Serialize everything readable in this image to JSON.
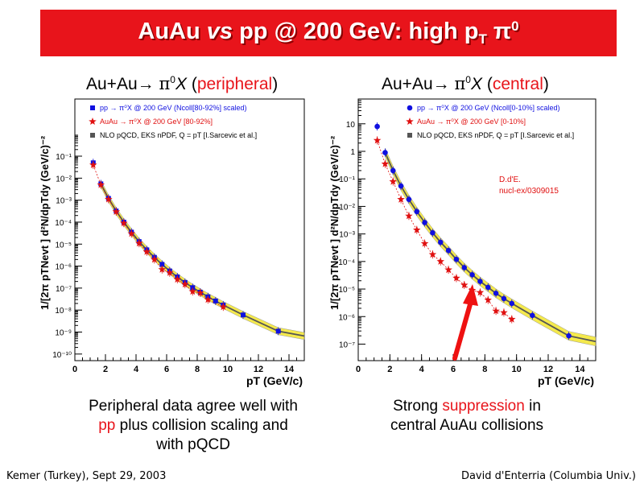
{
  "title": {
    "main": "AuAu ",
    "vs": "vs",
    "rest": " pp @ 200 GeV: high p",
    "sub": "T",
    "sp": " π",
    "sup": "0"
  },
  "left_heading": {
    "prefix": "Au+Au→ ",
    "pi": "π",
    "sup": "0",
    "x": "X",
    "open": " (",
    "tag": "peripheral",
    "close": ")"
  },
  "right_heading": {
    "prefix": "Au+Au→ ",
    "pi": "π",
    "sup": "0",
    "x": "X",
    "open": " (",
    "tag": "central",
    "close": ")"
  },
  "ylabel": "1/[2π pTNevt ] d²N/dpTdy (GeV/c)⁻²",
  "left_caption": {
    "l1": "Peripheral data agree well with",
    "l2a": "pp",
    "l2b": " plus collision scaling and",
    "l3": "with pQCD"
  },
  "right_caption": {
    "l1a": "Strong ",
    "l1b": "suppression",
    "l1c": " in",
    "l2": "central AuAu collisions"
  },
  "footer": {
    "left": "Kemer (Turkey), Sept 29, 2003",
    "right": "David d'Enterria (Columbia Univ.)"
  },
  "annotation": {
    "l1": "D.d'E.",
    "l2": "nucl-ex/0309015"
  },
  "colors": {
    "banner": "#e8141b",
    "pp": "#1010e0",
    "auau": "#e01010",
    "nlo_band": "#f0e000",
    "arrow": "#ee1111"
  },
  "chart_data": [
    {
      "type": "scatter",
      "xlabel": "pT (GeV/c)",
      "ylabel": "1/[2π pTNevt ] d²N/dpTdy (GeV/c)⁻²",
      "xlim": [
        0,
        15
      ],
      "ylim_log10": [
        -10.3,
        1.6
      ],
      "xticks": [
        0,
        2,
        4,
        6,
        8,
        10,
        12,
        14
      ],
      "yticks_log10": [
        -10,
        -9,
        -8,
        -7,
        -6,
        -5,
        -4,
        -3,
        -2,
        -1
      ],
      "ytick_labels": [
        "10⁻¹⁰",
        "10⁻⁹",
        "10⁻⁸",
        "10⁻⁷",
        "10⁻⁶",
        "10⁻⁵",
        "10⁻⁴",
        "10⁻³",
        "10⁻²",
        "10⁻¹"
      ],
      "legend": [
        "pp → π⁰X @ 200 GeV (Ncoll[80-92%] scaled)",
        "AuAu → π⁰X @ 200 GeV [80-92%]",
        "NLO pQCD, EKS nPDF, Q = pT [I.Sarcevic et al.]"
      ],
      "series": [
        {
          "name": "pp → π⁰X @ 200 GeV (Ncoll[80-92%] scaled)",
          "marker": "square",
          "color": "#1010e0",
          "x": [
            1.2,
            1.7,
            2.2,
            2.7,
            3.2,
            3.7,
            4.2,
            4.7,
            5.2,
            5.7,
            6.2,
            6.7,
            7.2,
            7.7,
            8.2,
            8.7,
            9.2,
            9.7,
            11.0,
            13.3
          ],
          "y": [
            0.05,
            0.0055,
            0.0012,
            0.00032,
            0.0001,
            3.5e-05,
            1.3e-05,
            5.5e-06,
            2.5e-06,
            1.2e-06,
            6e-07,
            3.2e-07,
            1.8e-07,
            1.05e-07,
            6.5e-08,
            4e-08,
            2.6e-08,
            1.7e-08,
            6e-09,
            1.1e-09
          ]
        },
        {
          "name": "AuAu → π⁰X @ 200 GeV [80-92%]",
          "marker": "star",
          "color": "#e01010",
          "x": [
            1.2,
            1.7,
            2.2,
            2.7,
            3.2,
            3.7,
            4.2,
            4.7,
            5.2,
            5.7,
            6.2,
            6.7,
            7.2,
            7.7,
            8.2,
            8.7,
            9.7
          ],
          "y": [
            0.04,
            0.005,
            0.0011,
            0.0003,
            9e-05,
            3e-05,
            1.1e-05,
            4.5e-06,
            2e-06,
            7e-07,
            5e-07,
            2.5e-07,
            1.5e-07,
            7e-08,
            6e-08,
            3e-08,
            1.4e-08
          ]
        }
      ]
    },
    {
      "type": "scatter",
      "xlabel": "pT (GeV/c)",
      "ylabel": "1/[2π pTNevt ] d²N/dpTdy (GeV/c)⁻²",
      "xlim": [
        0,
        15
      ],
      "ylim_log10": [
        -7.6,
        1.9
      ],
      "xticks": [
        0,
        2,
        4,
        6,
        8,
        10,
        12,
        14
      ],
      "yticks_log10": [
        -7,
        -6,
        -5,
        -4,
        -3,
        -2,
        -1,
        0,
        1
      ],
      "ytick_labels": [
        "10⁻⁷",
        "10⁻⁶",
        "10⁻⁵",
        "10⁻⁴",
        "10⁻³",
        "10⁻²",
        "10⁻¹",
        "1",
        "10"
      ],
      "legend": [
        "pp → π⁰X @ 200 GeV (Ncoll[0-10%] scaled)",
        "AuAu → π⁰X @ 200 GeV [0-10%]",
        "NLO pQCD, EKS nPDF, Q = pT [I.Sarcevic et al.]"
      ],
      "series": [
        {
          "name": "pp → π⁰X @ 200 GeV (Ncoll[0-10%] scaled)",
          "marker": "circle",
          "color": "#1010e0",
          "x": [
            1.2,
            1.7,
            2.2,
            2.7,
            3.2,
            3.7,
            4.2,
            4.7,
            5.2,
            5.7,
            6.2,
            6.7,
            7.2,
            7.7,
            8.2,
            8.7,
            9.2,
            9.7,
            11.0,
            13.3
          ],
          "y": [
            8,
            0.9,
            0.2,
            0.055,
            0.018,
            0.0065,
            0.0026,
            0.0011,
            0.0005,
            0.00025,
            0.00012,
            6e-05,
            3.3e-05,
            1.9e-05,
            1.15e-05,
            7e-06,
            4.5e-06,
            3e-06,
            1.1e-06,
            2e-07
          ]
        },
        {
          "name": "AuAu → π⁰X @ 200 GeV [0-10%]",
          "marker": "star",
          "color": "#e01010",
          "x": [
            1.2,
            1.7,
            2.2,
            2.7,
            3.2,
            3.7,
            4.2,
            4.7,
            5.2,
            5.7,
            6.2,
            6.7,
            7.2,
            7.7,
            8.2,
            8.7,
            9.2,
            9.7
          ],
          "y": [
            2.5,
            0.35,
            0.08,
            0.018,
            0.0045,
            0.0014,
            0.00045,
            0.00018,
            0.0001,
            5e-05,
            2.5e-05,
            1.4e-05,
            9e-06,
            7.5e-06,
            4e-06,
            1.6e-06,
            1.4e-06,
            8e-07
          ]
        }
      ]
    }
  ]
}
